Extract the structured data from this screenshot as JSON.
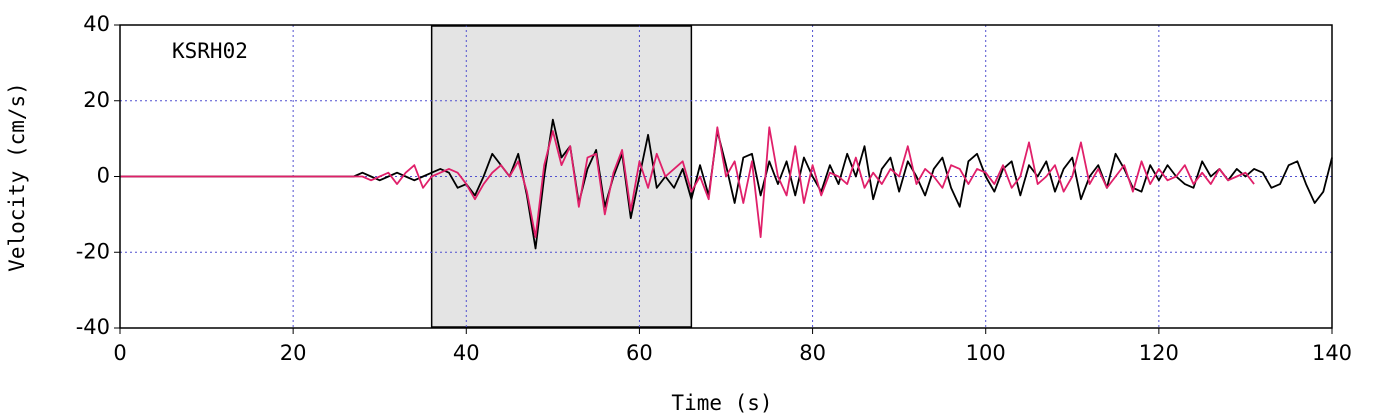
{
  "chart_data": {
    "type": "line",
    "x_label": "Time (s)",
    "y_label": "Velocity (cm/s)",
    "annotation": "KSRH02",
    "shaded_region": [
      36,
      66
    ],
    "xlim": [
      0,
      140
    ],
    "xticks": [
      0,
      20,
      40,
      60,
      80,
      100,
      120,
      140
    ],
    "ylim": [
      -40,
      40
    ],
    "yticks": [
      -40,
      -20,
      0,
      20,
      40
    ],
    "grid": true,
    "x": [
      0,
      1,
      2,
      3,
      4,
      5,
      6,
      7,
      8,
      9,
      10,
      11,
      12,
      13,
      14,
      15,
      16,
      17,
      18,
      19,
      20,
      21,
      22,
      23,
      24,
      25,
      26,
      27,
      28,
      29,
      30,
      31,
      32,
      33,
      34,
      35,
      36,
      37,
      38,
      39,
      40,
      41,
      42,
      43,
      44,
      45,
      46,
      47,
      48,
      49,
      50,
      51,
      52,
      53,
      54,
      55,
      56,
      57,
      58,
      59,
      60,
      61,
      62,
      63,
      64,
      65,
      66,
      67,
      68,
      69,
      70,
      71,
      72,
      73,
      74,
      75,
      76,
      77,
      78,
      79,
      80,
      81,
      82,
      83,
      84,
      85,
      86,
      87,
      88,
      89,
      90,
      91,
      92,
      93,
      94,
      95,
      96,
      97,
      98,
      99,
      100,
      101,
      102,
      103,
      104,
      105,
      106,
      107,
      108,
      109,
      110,
      111,
      112,
      113,
      114,
      115,
      116,
      117,
      118,
      119,
      120,
      121,
      122,
      123,
      124,
      125,
      126,
      127,
      128,
      129,
      130,
      131,
      132,
      133,
      134,
      135,
      136,
      137,
      138,
      139,
      140
    ],
    "series": [
      {
        "color": "#000000",
        "values": [
          0,
          0,
          0,
          0,
          0,
          0,
          0,
          0,
          0,
          0,
          0,
          0,
          0,
          0,
          0,
          0,
          0,
          0,
          0,
          0,
          0,
          0,
          0,
          0,
          0,
          0,
          0,
          0,
          1,
          0,
          -1,
          0,
          1,
          0,
          -1,
          0,
          1,
          2,
          1,
          -3,
          -2,
          -5,
          0,
          6,
          3,
          0,
          6,
          -5,
          -19,
          0,
          15,
          5,
          8,
          -7,
          2,
          7,
          -8,
          0,
          6,
          -11,
          0,
          11,
          -3,
          0,
          -3,
          2,
          -6,
          3,
          -5,
          12,
          3,
          -7,
          5,
          6,
          -5,
          4,
          -2,
          4,
          -5,
          5,
          0,
          -4,
          3,
          -2,
          6,
          0,
          8,
          -6,
          2,
          5,
          -4,
          4,
          0,
          -5,
          2,
          5,
          -3,
          -8,
          4,
          6,
          0,
          -4,
          2,
          4,
          -5,
          3,
          0,
          4,
          -4,
          2,
          5,
          -6,
          0,
          3,
          -3,
          6,
          2,
          -3,
          -4,
          3,
          -1,
          3,
          0,
          -2,
          -3,
          4,
          0,
          2,
          -1,
          2,
          0,
          2,
          1,
          -3,
          -2,
          3,
          4,
          -2,
          -7,
          -4,
          5
        ]
      },
      {
        "color": "#e0206a",
        "values": [
          0,
          0,
          0,
          0,
          0,
          0,
          0,
          0,
          0,
          0,
          0,
          0,
          0,
          0,
          0,
          0,
          0,
          0,
          0,
          0,
          0,
          0,
          0,
          0,
          0,
          0,
          0,
          0,
          0,
          -1,
          0,
          1,
          -2,
          1,
          3,
          -3,
          0,
          1,
          2,
          1,
          -2,
          -6,
          -2,
          1,
          3,
          0,
          4,
          -4,
          -16,
          3,
          12,
          3,
          8,
          -8,
          5,
          6,
          -10,
          1,
          7,
          -9,
          4,
          -3,
          6,
          0,
          2,
          4,
          -4,
          0,
          -6,
          13,
          0,
          4,
          -7,
          4,
          -16,
          13,
          0,
          -5,
          8,
          -7,
          3,
          -5,
          1,
          0,
          -2,
          5,
          -3,
          1,
          -2,
          2,
          0,
          8,
          -2,
          2,
          0,
          -3,
          3,
          2,
          -2,
          2,
          1,
          -2,
          3,
          -3,
          0,
          9,
          -2,
          0,
          3,
          -4,
          0,
          9,
          -2,
          2,
          -3,
          0,
          3,
          -4,
          4,
          -2,
          2,
          -1,
          0,
          3,
          -2,
          1,
          -2,
          2,
          -1,
          0,
          1,
          -2,
          null,
          null,
          null,
          null,
          null,
          null,
          null,
          null,
          null
        ]
      }
    ]
  }
}
